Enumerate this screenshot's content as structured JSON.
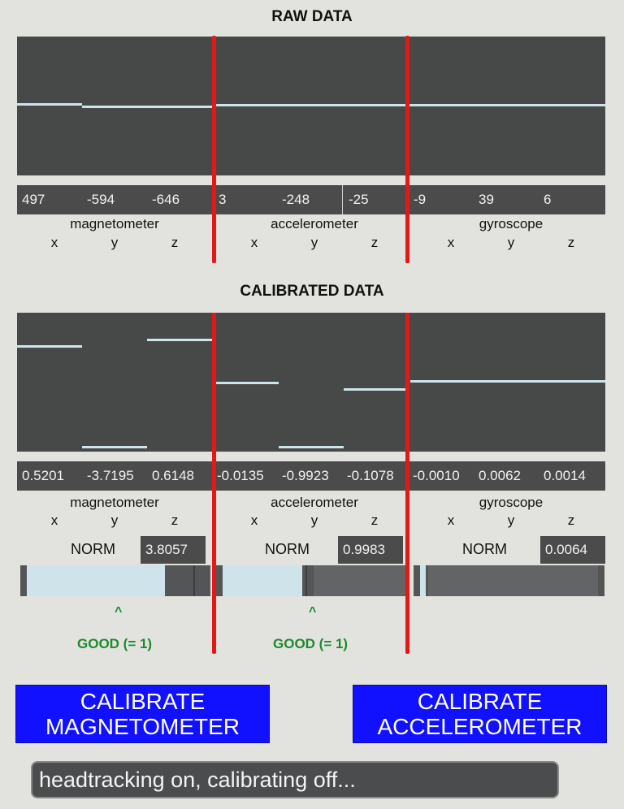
{
  "raw": {
    "title": "RAW DATA",
    "values": [
      "497",
      "-594",
      "-646",
      "3",
      "-248",
      "-25",
      "-9",
      "39",
      "6"
    ],
    "groups": [
      "magnetometer",
      "accelerometer",
      "gyroscope"
    ],
    "axes": [
      "x",
      "y",
      "z"
    ]
  },
  "calibrated": {
    "title": "CALIBRATED DATA",
    "values": [
      "0.5201",
      "-3.7195",
      "0.6148",
      "-0.0135",
      "-0.9923",
      "-0.1078",
      "-0.0010",
      "0.0062",
      "0.0014"
    ],
    "groups": [
      "magnetometer",
      "accelerometer",
      "gyroscope"
    ],
    "axes": [
      "x",
      "y",
      "z"
    ]
  },
  "norms": [
    {
      "label": "NORM",
      "value": "3.8057",
      "level": 0.78
    },
    {
      "label": "NORM",
      "value": "0.9983",
      "level": 0.45
    },
    {
      "label": "NORM",
      "value": "0.0064",
      "level": 0.03
    }
  ],
  "good": {
    "caret": "^",
    "label": "GOOD (= 1)"
  },
  "buttons": {
    "calibrate_mag": "CALIBRATE\nMAGNETOMETER",
    "calibrate_acc": "CALIBRATE\nACCELEROMETER"
  },
  "status": "headtracking on, calibrating off...",
  "colors": {
    "scope_bg": "#474948",
    "trace": "#cfe4ea",
    "red_marker": "#e31818",
    "button": "#1111ff",
    "good": "#1e8a2c"
  }
}
